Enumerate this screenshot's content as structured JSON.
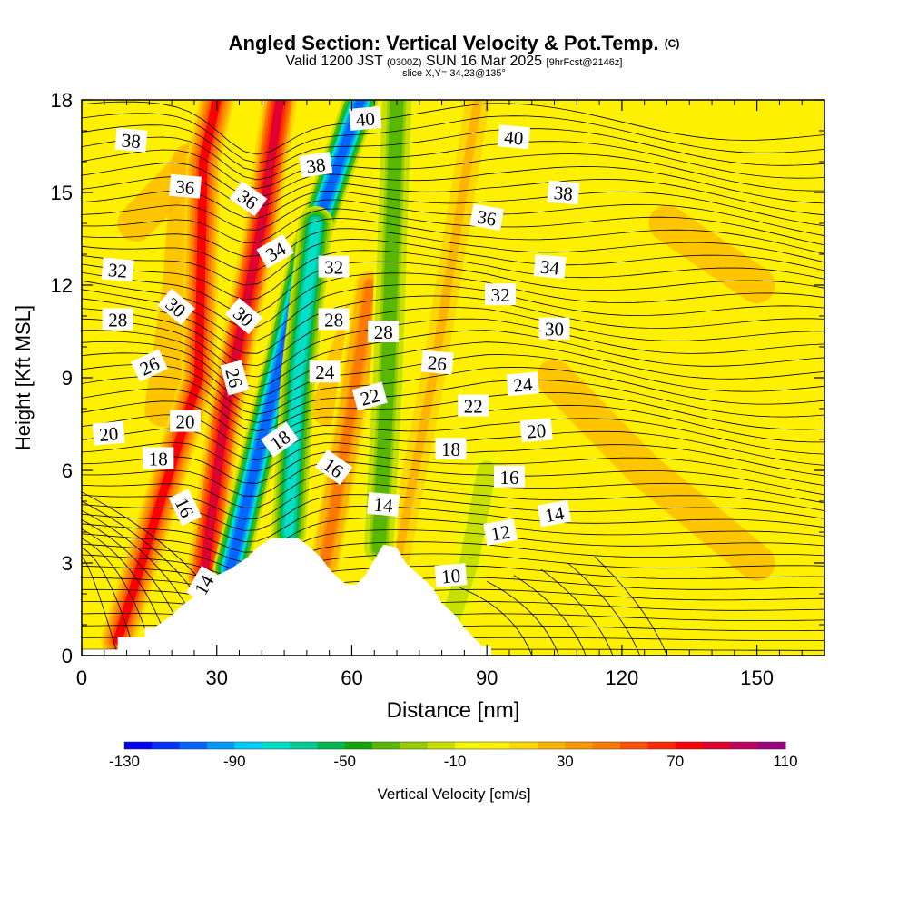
{
  "header": {
    "title": "Angled Section: Vertical Velocity & Pot.Temp.",
    "title_mark": "(C)",
    "valid_prefix": "Valid 1200 JST",
    "valid_utc": "(0300Z)",
    "valid_date": "SUN 16 Mar 2025",
    "fcst": "[9hrFcst@2146z]",
    "slice": "slice X,Y= 34,23@135°"
  },
  "chart_data": {
    "type": "heatmap",
    "xlabel": "Distance [nm]",
    "ylabel": "Height [Kft MSL]",
    "xlim": [
      0,
      165
    ],
    "ylim": [
      0,
      18
    ],
    "x_ticks": [
      "0",
      "30",
      "60",
      "90",
      "120",
      "150"
    ],
    "y_ticks": [
      "0",
      "3",
      "6",
      "9",
      "12",
      "15",
      "18"
    ],
    "colorbar": {
      "label": "Vertical Velocity [cm/s]",
      "tick_labels": [
        "-130",
        "-90",
        "-50",
        "-10",
        "30",
        "70",
        "110"
      ],
      "levels": [
        -130,
        -120,
        -110,
        -100,
        -90,
        -80,
        -70,
        -60,
        -50,
        -40,
        -30,
        -20,
        -10,
        0,
        10,
        20,
        30,
        40,
        50,
        60,
        70,
        80,
        90,
        100,
        110
      ],
      "colors": [
        "#0000ff",
        "#0033ff",
        "#0066ff",
        "#0099ff",
        "#00ccff",
        "#00e0c8",
        "#00cc96",
        "#00b850",
        "#10a800",
        "#58b800",
        "#96cc00",
        "#c8e000",
        "#f5f500",
        "#fff000",
        "#ffd700",
        "#ffb400",
        "#ff9600",
        "#ff7800",
        "#ff5000",
        "#ff2800",
        "#ff0000",
        "#e00030",
        "#c00060",
        "#a00080",
        "#6a0090"
      ]
    },
    "terrain_kft": [
      [
        0,
        0.2
      ],
      [
        8,
        0.2
      ],
      [
        8,
        0.6
      ],
      [
        10,
        0.6
      ],
      [
        14,
        0.6
      ],
      [
        14,
        0.9
      ],
      [
        16,
        0.9
      ],
      [
        18,
        1.1
      ],
      [
        20,
        1.3
      ],
      [
        22,
        1.6
      ],
      [
        25,
        1.9
      ],
      [
        28,
        2.3
      ],
      [
        30,
        2.6
      ],
      [
        33,
        2.8
      ],
      [
        35,
        3.0
      ],
      [
        37,
        3.2
      ],
      [
        39,
        3.5
      ],
      [
        42,
        3.8
      ],
      [
        46,
        3.8
      ],
      [
        48,
        3.8
      ],
      [
        50,
        3.6
      ],
      [
        53,
        3.2
      ],
      [
        55,
        2.8
      ],
      [
        57,
        2.5
      ],
      [
        59,
        2.3
      ],
      [
        61,
        2.3
      ],
      [
        63,
        2.6
      ],
      [
        65,
        3.1
      ],
      [
        67,
        3.6
      ],
      [
        70,
        3.5
      ],
      [
        72,
        3.0
      ],
      [
        75,
        2.6
      ],
      [
        78,
        2.2
      ],
      [
        80,
        1.7
      ],
      [
        83,
        1.3
      ],
      [
        85,
        0.9
      ],
      [
        87,
        0.6
      ],
      [
        89,
        0.3
      ],
      [
        91,
        0.3
      ]
    ],
    "updraft_bands": [
      {
        "x": [
          [
            8,
            0.5
          ],
          [
            26,
            9
          ],
          [
            27,
            16
          ],
          [
            30,
            18
          ]
        ],
        "peak": 70
      },
      {
        "x": [
          [
            27,
            2.5
          ],
          [
            32,
            8
          ],
          [
            40,
            14
          ],
          [
            44,
            18
          ]
        ],
        "peak": 80
      },
      {
        "x": [
          [
            54,
            3
          ],
          [
            60,
            8
          ],
          [
            64,
            12
          ]
        ],
        "peak": 40
      },
      {
        "x": [
          [
            70,
            3
          ],
          [
            78,
            9
          ],
          [
            88,
            18
          ]
        ],
        "peak": 20
      }
    ],
    "downdraft_bands": [
      {
        "x": [
          [
            33,
            2.8
          ],
          [
            40,
            7
          ],
          [
            50,
            13
          ],
          [
            62,
            18
          ]
        ],
        "peak": -110
      },
      {
        "x": [
          [
            46,
            4
          ],
          [
            48,
            9
          ],
          [
            52,
            14
          ]
        ],
        "peak": -80
      },
      {
        "x": [
          [
            66,
            3.5
          ],
          [
            68,
            9
          ],
          [
            70,
            18
          ]
        ],
        "peak": -40
      },
      {
        "x": [
          [
            82,
            1.2
          ],
          [
            86,
            3
          ],
          [
            90,
            6
          ]
        ],
        "peak": -20
      }
    ],
    "contour_labels": [
      {
        "text": "38",
        "x": 11,
        "y": 16.7,
        "rot": 5
      },
      {
        "text": "36",
        "x": 23,
        "y": 15.2,
        "rot": 5
      },
      {
        "text": "36",
        "x": 37,
        "y": 14.8,
        "rot": 35
      },
      {
        "text": "38",
        "x": 52,
        "y": 15.9,
        "rot": -8
      },
      {
        "text": "40",
        "x": 63,
        "y": 17.4,
        "rot": -5
      },
      {
        "text": "40",
        "x": 96,
        "y": 16.8,
        "rot": 5
      },
      {
        "text": "38",
        "x": 107,
        "y": 15.0,
        "rot": 5
      },
      {
        "text": "36",
        "x": 90,
        "y": 14.2,
        "rot": 10
      },
      {
        "text": "34",
        "x": 43,
        "y": 13.1,
        "rot": -30
      },
      {
        "text": "32",
        "x": 8,
        "y": 12.5,
        "rot": 5
      },
      {
        "text": "32",
        "x": 56,
        "y": 12.6,
        "rot": 0
      },
      {
        "text": "34",
        "x": 104,
        "y": 12.6,
        "rot": 5
      },
      {
        "text": "32",
        "x": 93,
        "y": 11.7,
        "rot": 0
      },
      {
        "text": "30",
        "x": 21,
        "y": 11.3,
        "rot": 40
      },
      {
        "text": "30",
        "x": 36,
        "y": 11.0,
        "rot": 40
      },
      {
        "text": "28",
        "x": 8,
        "y": 10.9,
        "rot": 0
      },
      {
        "text": "28",
        "x": 56,
        "y": 10.9,
        "rot": 0
      },
      {
        "text": "28",
        "x": 67,
        "y": 10.5,
        "rot": 0
      },
      {
        "text": "30",
        "x": 105,
        "y": 10.6,
        "rot": 0
      },
      {
        "text": "26",
        "x": 15,
        "y": 9.4,
        "rot": -25
      },
      {
        "text": "26",
        "x": 34,
        "y": 9.0,
        "rot": 75
      },
      {
        "text": "24",
        "x": 54,
        "y": 9.2,
        "rot": 0
      },
      {
        "text": "26",
        "x": 79,
        "y": 9.5,
        "rot": 5
      },
      {
        "text": "24",
        "x": 98,
        "y": 8.8,
        "rot": -5
      },
      {
        "text": "22",
        "x": 64,
        "y": 8.4,
        "rot": -15
      },
      {
        "text": "22",
        "x": 87,
        "y": 8.1,
        "rot": 0
      },
      {
        "text": "20",
        "x": 23,
        "y": 7.6,
        "rot": 0
      },
      {
        "text": "20",
        "x": 6,
        "y": 7.2,
        "rot": -5
      },
      {
        "text": "20",
        "x": 101,
        "y": 7.3,
        "rot": -5
      },
      {
        "text": "18",
        "x": 44,
        "y": 7.0,
        "rot": -35
      },
      {
        "text": "18",
        "x": 17,
        "y": 6.4,
        "rot": 0
      },
      {
        "text": "18",
        "x": 82,
        "y": 6.7,
        "rot": 0
      },
      {
        "text": "16",
        "x": 56,
        "y": 6.1,
        "rot": 35
      },
      {
        "text": "16",
        "x": 95,
        "y": 5.8,
        "rot": 0
      },
      {
        "text": "16",
        "x": 23,
        "y": 4.8,
        "rot": 65
      },
      {
        "text": "14",
        "x": 67,
        "y": 4.9,
        "rot": 5
      },
      {
        "text": "14",
        "x": 105,
        "y": 4.6,
        "rot": -10
      },
      {
        "text": "12",
        "x": 93,
        "y": 4.0,
        "rot": -10
      },
      {
        "text": "14",
        "x": 27,
        "y": 2.3,
        "rot": -60
      },
      {
        "text": "10",
        "x": 82,
        "y": 2.6,
        "rot": -5
      }
    ]
  }
}
